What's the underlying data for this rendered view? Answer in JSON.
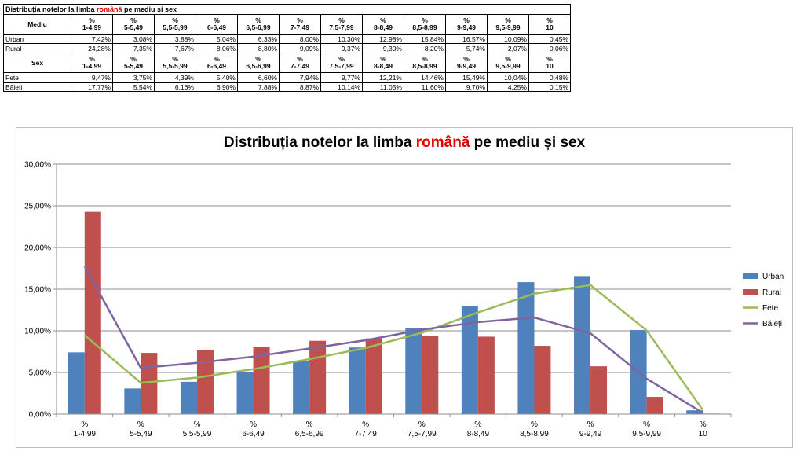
{
  "table": {
    "title_prefix": "Distribuția notelor la limba ",
    "title_highlight": "română",
    "title_suffix": " pe mediu și sex",
    "header_pct": "%",
    "mediu_label": "Mediu",
    "sex_label": "Sex",
    "headers": [
      "1-4,99",
      "5-5,49",
      "5,5-5,99",
      "6-6,49",
      "6,5-6,99",
      "7-7,49",
      "7,5-7,99",
      "8-8,49",
      "8,5-8,99",
      "9-9,49",
      "9,5-9,99",
      "10"
    ],
    "rows_mediu": [
      {
        "label": "Urban",
        "values": [
          "7,42%",
          "3,08%",
          "3,88%",
          "5,04%",
          "6,33%",
          "8,00%",
          "10,30%",
          "12,98%",
          "15,84%",
          "16,57%",
          "10,09%",
          "0,45%"
        ]
      },
      {
        "label": "Rural",
        "values": [
          "24,28%",
          "7,35%",
          "7,67%",
          "8,06%",
          "8,80%",
          "9,09%",
          "9,37%",
          "9,30%",
          "8,20%",
          "5,74%",
          "2,07%",
          "0,06%"
        ]
      }
    ],
    "rows_sex": [
      {
        "label": "Fete",
        "values": [
          "9,47%",
          "3,75%",
          "4,39%",
          "5,40%",
          "6,60%",
          "7,94%",
          "9,77%",
          "12,21%",
          "14,46%",
          "15,49%",
          "10,04%",
          "0,48%"
        ]
      },
      {
        "label": "Băieți",
        "values": [
          "17,77%",
          "5,54%",
          "6,16%",
          "6,90%",
          "7,88%",
          "8,87%",
          "10,14%",
          "11,05%",
          "11,60%",
          "9,70%",
          "4,25%",
          "0,15%"
        ]
      }
    ]
  },
  "chart_data": {
    "type": "bar",
    "title_prefix": "Distribuția notelor la limba ",
    "title_highlight": "română",
    "title_suffix": " pe mediu și sex",
    "category_prefix": "%",
    "categories": [
      "1-4,99",
      "5-5,49",
      "5,5-5,99",
      "6-6,49",
      "6,5-6,99",
      "7-7,49",
      "7,5-7,99",
      "8-8,49",
      "8,5-8,99",
      "9-9,49",
      "9,5-9,99",
      "10"
    ],
    "ylim": [
      0,
      30
    ],
    "yticks": [
      "0,00%",
      "5,00%",
      "10,00%",
      "15,00%",
      "20,00%",
      "25,00%",
      "30,00%"
    ],
    "ytick_values": [
      0,
      5,
      10,
      15,
      20,
      25,
      30
    ],
    "grid": true,
    "legend_position": "right",
    "series": [
      {
        "name": "Urban",
        "kind": "bar",
        "color": "#4f81bd",
        "values": [
          7.42,
          3.08,
          3.88,
          5.04,
          6.33,
          8.0,
          10.3,
          12.98,
          15.84,
          16.57,
          10.09,
          0.45
        ]
      },
      {
        "name": "Rural",
        "kind": "bar",
        "color": "#c0504d",
        "values": [
          24.28,
          7.35,
          7.67,
          8.06,
          8.8,
          9.09,
          9.37,
          9.3,
          8.2,
          5.74,
          2.07,
          0.06
        ]
      },
      {
        "name": "Fete",
        "kind": "line",
        "color": "#9bbb59",
        "values": [
          9.47,
          3.75,
          4.39,
          5.4,
          6.6,
          7.94,
          9.77,
          12.21,
          14.46,
          15.49,
          10.04,
          0.48
        ]
      },
      {
        "name": "Băieți",
        "kind": "line",
        "color": "#8064a2",
        "values": [
          17.77,
          5.54,
          6.16,
          6.9,
          7.88,
          8.87,
          10.14,
          11.05,
          11.6,
          9.7,
          4.25,
          0.15
        ]
      }
    ]
  }
}
